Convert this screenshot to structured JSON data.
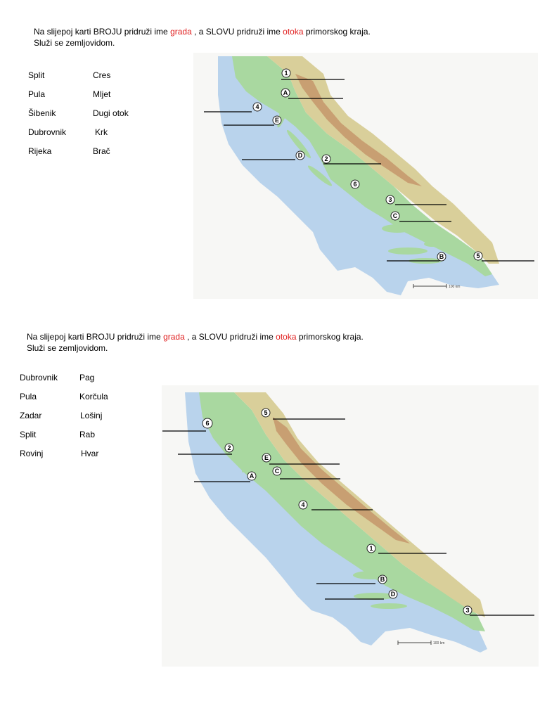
{
  "worksheets": [
    {
      "instruction": {
        "part1": "Na slijepoj karti BROJU pridruži ime ",
        "grada": "grada",
        "part2": " , a SLOVU pridruži ime ",
        "otoka": "otoka",
        "part3": "  primorskog kraja.",
        "line2": "Služi se zemljovidom."
      },
      "cities": [
        "Split",
        "Pula",
        "Šibenik",
        "Dubrovnik",
        "Rijeka"
      ],
      "islands": [
        "Cres",
        "Mljet",
        "Dugi otok",
        "Krk",
        "Brač"
      ],
      "markers": [
        "1",
        "A",
        "4",
        "E",
        "D",
        "2",
        "6",
        "3",
        "C",
        "B",
        "5"
      ],
      "scale_label": "100 km"
    },
    {
      "instruction": {
        "part1": "Na slijepoj karti BROJU pridruži ime ",
        "grada": "grada",
        "part2": " , a SLOVU pridruži ime ",
        "otoka": "otoka",
        "part3": "  primorskog kraja.",
        "line2": "Služi se zemljovidom."
      },
      "cities": [
        "Dubrovnik",
        "Pula",
        "Zadar",
        "Split",
        "Rovinj"
      ],
      "islands": [
        "Pag",
        "Korčula",
        "Lošinj",
        "Rab",
        "Hvar"
      ],
      "markers": [
        "5",
        "6",
        "2",
        "E",
        "C",
        "A",
        "4",
        "1",
        "B",
        "D",
        "3"
      ],
      "scale_label": "100 km"
    }
  ],
  "colors": {
    "sea": "#b9d3ec",
    "lowland": "#a9d8a0",
    "hills": "#d9cf9a",
    "mountains": "#c89f72",
    "red_text": "#e02020"
  }
}
